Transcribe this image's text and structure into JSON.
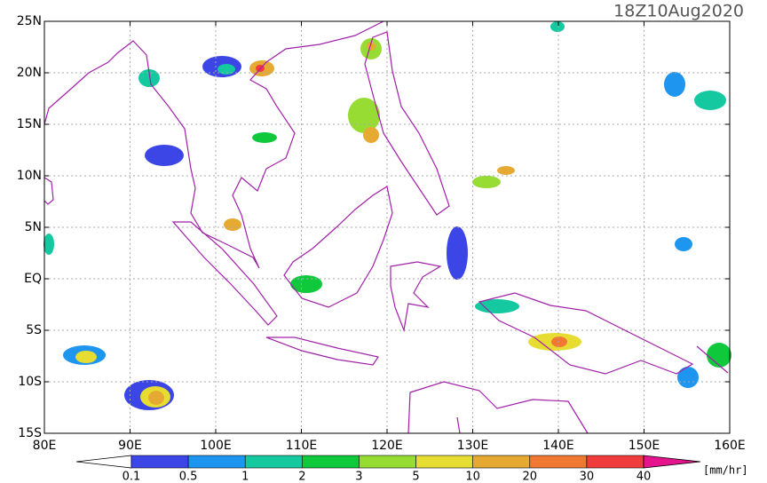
{
  "title": "18Z10Aug2020",
  "lat_labels": [
    "25N",
    "20N",
    "15N",
    "10N",
    "5N",
    "EQ",
    "5S",
    "10S",
    "15S"
  ],
  "lon_labels": [
    "80E",
    "90E",
    "100E",
    "110E",
    "120E",
    "130E",
    "140E",
    "150E",
    "160E"
  ],
  "colorbar": {
    "levels": [
      0.1,
      0.5,
      1,
      2,
      3,
      5,
      10,
      20,
      30,
      40
    ],
    "colors": [
      "#3c46e6",
      "#1e96f0",
      "#14c8a0",
      "#10c83c",
      "#96dc32",
      "#e6dc32",
      "#e6aa32",
      "#f07832",
      "#f03c3c"
    ],
    "over_color": "#e6148c",
    "unit": "[mm/hr]"
  }
}
